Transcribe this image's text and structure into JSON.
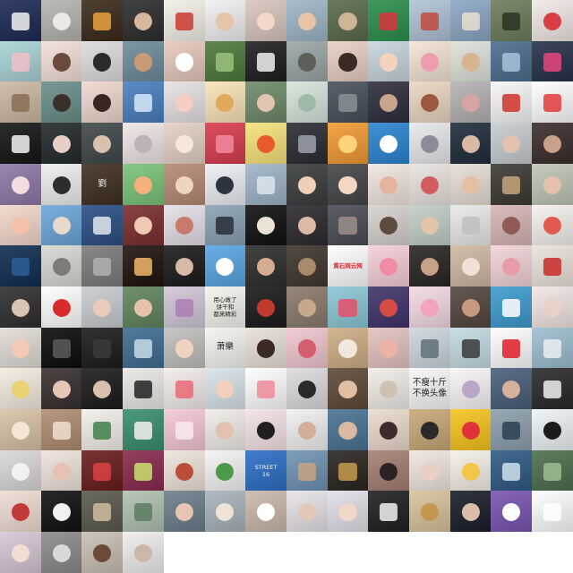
{
  "tiles": [
    {
      "bg": "#1d2a55",
      "accent": "#f3f3f3",
      "face": false
    },
    {
      "bg": "#b7b5b0",
      "accent": "#ece7e2",
      "face": true
    },
    {
      "bg": "#3a2a1a",
      "accent": "#e9a340",
      "face": false
    },
    {
      "bg": "#2d2d2d",
      "accent": "#d9b79c",
      "face": true
    },
    {
      "bg": "#f4efe8",
      "accent": "#cc3b32",
      "face": false
    },
    {
      "bg": "#f1f1f1",
      "accent": "#e6c4a6",
      "face": true
    },
    {
      "bg": "#d8c6bd",
      "accent": "#f3d7c8",
      "face": true
    },
    {
      "bg": "#9fb6c8",
      "accent": "#e8c3a7",
      "face": true
    },
    {
      "bg": "#5a6b4c",
      "accent": "#cfb598",
      "face": true
    },
    {
      "bg": "#2b8f4e",
      "accent": "#d8343a",
      "face": false
    },
    {
      "bg": "#b0c3d6",
      "accent": "#c24a3f",
      "face": false
    },
    {
      "bg": "#8ca7c4",
      "accent": "#e9e0d4",
      "face": false
    },
    {
      "bg": "#6c7d5c",
      "accent": "#2c3324",
      "face": false
    },
    {
      "bg": "#f2e9e6",
      "accent": "#d73f44",
      "face": true
    },
    {
      "bg": "#a9d4d6",
      "accent": "#f2c0c8",
      "face": false
    },
    {
      "bg": "#f3e1d9",
      "accent": "#6a4a3b",
      "face": true
    },
    {
      "bg": "#dedede",
      "accent": "#2b2b2b",
      "face": true
    },
    {
      "bg": "#6f8c9c",
      "accent": "#c99a76",
      "face": true
    },
    {
      "bg": "#e7c9bd",
      "accent": "#ffffff",
      "face": true
    },
    {
      "bg": "#4e7a3b",
      "accent": "#9cc27c",
      "face": false
    },
    {
      "bg": "#1f1f1f",
      "accent": "#f0f0f0",
      "face": false
    },
    {
      "bg": "#9aa6a6",
      "accent": "#5c6058",
      "face": true
    },
    {
      "bg": "#ead0c4",
      "accent": "#3a2a24",
      "face": true
    },
    {
      "bg": "#c8d6de",
      "accent": "#f4d2be",
      "face": true
    },
    {
      "bg": "#f4e5d6",
      "accent": "#ee9db0",
      "face": true
    },
    {
      "bg": "#dfe4da",
      "accent": "#d5b48f",
      "face": true
    },
    {
      "bg": "#4b6e8f",
      "accent": "#a7c3d9",
      "face": false
    },
    {
      "bg": "#26324a",
      "accent": "#e6467b",
      "face": false
    },
    {
      "bg": "#ccb9a3",
      "accent": "#8b6f57",
      "face": false
    },
    {
      "bg": "#6b8e8a",
      "accent": "#3a2f2b",
      "face": true
    },
    {
      "bg": "#f1d8cf",
      "accent": "#3a2621",
      "face": true
    },
    {
      "bg": "#4a7fc0",
      "accent": "#d6e8f6",
      "face": false
    },
    {
      "bg": "#e8e2e3",
      "accent": "#f5cdc2",
      "face": true
    },
    {
      "bg": "#fbe4b8",
      "accent": "#e0a85c",
      "face": true
    },
    {
      "bg": "#6f8a6b",
      "accent": "#e0c5b0",
      "face": true
    },
    {
      "bg": "#d6e6dd",
      "accent": "#9fb9a9",
      "face": true
    },
    {
      "bg": "#47505b",
      "accent": "#8a8f96",
      "face": false
    },
    {
      "bg": "#2e2d3e",
      "accent": "#c8a58d",
      "face": true
    },
    {
      "bg": "#ead7c2",
      "accent": "#9b5a3f",
      "face": true
    },
    {
      "bg": "#b7b2b4",
      "accent": "#d7a4a5",
      "face": true
    },
    {
      "bg": "#f7f7f7",
      "accent": "#d1332c",
      "face": false
    },
    {
      "bg": "#ffffff",
      "accent": "#e53b3b",
      "face": false
    },
    {
      "bg": "#151515",
      "accent": "#f3f3f3",
      "face": false
    },
    {
      "bg": "#222a2e",
      "accent": "#e7cfc7",
      "face": true
    },
    {
      "bg": "#40484a",
      "accent": "#d9c1ae",
      "face": true
    },
    {
      "bg": "#f0e6e6",
      "accent": "#bfb2b5",
      "face": true
    },
    {
      "bg": "#e4d1c5",
      "accent": "#f7e6dc",
      "face": true
    },
    {
      "bg": "#d93c4f",
      "accent": "#f28aa0",
      "face": false
    },
    {
      "bg": "#f7e37a",
      "accent": "#ea5a2f",
      "face": true
    },
    {
      "bg": "#2a2c33",
      "accent": "#9aa0ab",
      "face": false
    },
    {
      "bg": "#f29b33",
      "accent": "#ffd37c",
      "face": true
    },
    {
      "bg": "#2b85d1",
      "accent": "#ffffff",
      "face": true
    },
    {
      "bg": "#e9e8ed",
      "accent": "#8c8c98",
      "face": true
    },
    {
      "bg": "#1f2d3b",
      "accent": "#d8b9a5",
      "face": true
    },
    {
      "bg": "#c7cdd2",
      "accent": "#e2c2ae",
      "face": true
    },
    {
      "bg": "#3b2e2b",
      "accent": "#c9a18b",
      "face": true
    },
    {
      "bg": "#8f79a8",
      "accent": "#f2dde0",
      "face": true
    },
    {
      "bg": "#efefef",
      "accent": "#2d2d2d",
      "face": true
    },
    {
      "bg": "#3f2f22",
      "accent": "#d9a441",
      "face": false,
      "text": "劉",
      "style": "big light"
    },
    {
      "bg": "#7ac37b",
      "accent": "#f6b17a",
      "face": true
    },
    {
      "bg": "#b58a74",
      "accent": "#efd4c2",
      "face": true
    },
    {
      "bg": "#edf0f4",
      "accent": "#2c3440",
      "face": true
    },
    {
      "bg": "#9fb5c8",
      "accent": "#dbe6ef",
      "face": false
    },
    {
      "bg": "#3b3d3c",
      "accent": "#efcfb8",
      "face": true
    },
    {
      "bg": "#454647",
      "accent": "#f2d7c3",
      "face": true
    },
    {
      "bg": "#f2e7e0",
      "accent": "#e6b49e",
      "face": true
    },
    {
      "bg": "#eae4de",
      "accent": "#d25c5f",
      "face": true
    },
    {
      "bg": "#e7dfd6",
      "accent": "#e6bfa3",
      "face": true
    },
    {
      "bg": "#3d3a33",
      "accent": "#c5a67c",
      "face": false
    },
    {
      "bg": "#bfc7b5",
      "accent": "#e4c2ae",
      "face": true
    },
    {
      "bg": "#f3d8cc",
      "accent": "#f4c1ab",
      "face": true
    },
    {
      "bg": "#6da7d9",
      "accent": "#e8d9cc",
      "face": true
    },
    {
      "bg": "#2c4f85",
      "accent": "#e1e7ee",
      "face": false
    },
    {
      "bg": "#7a2f2f",
      "accent": "#efc9b4",
      "face": true
    },
    {
      "bg": "#e6dfe9",
      "accent": "#c97a6c",
      "face": true
    },
    {
      "bg": "#8aa2b4",
      "accent": "#2b2f38",
      "face": false
    },
    {
      "bg": "#101010",
      "accent": "#ebe2d6",
      "face": true
    },
    {
      "bg": "#2c2a2f",
      "accent": "#dcb8a6",
      "face": true
    },
    {
      "bg": "#4b4c55",
      "accent": "#9a8f88",
      "face": false
    },
    {
      "bg": "#d6d2cc",
      "accent": "#5c4c40",
      "face": true
    },
    {
      "bg": "#c2cfc7",
      "accent": "#e2c3ad",
      "face": true
    },
    {
      "bg": "#eaeae9",
      "accent": "#c0c0c0",
      "face": false
    },
    {
      "bg": "#d7b6b5",
      "accent": "#8e5c55",
      "face": true
    },
    {
      "bg": "#f5f2ef",
      "accent": "#e15b4f",
      "face": true
    },
    {
      "bg": "#0f2d52",
      "accent": "#2d5e96",
      "face": false
    },
    {
      "bg": "#d9d9d4",
      "accent": "#7f7b76",
      "face": true
    },
    {
      "bg": "#7c7c7c",
      "accent": "#b0b0b0",
      "face": false
    },
    {
      "bg": "#20130e",
      "accent": "#f1b66a",
      "face": false
    },
    {
      "bg": "#1b1b1b",
      "accent": "#d6b9a6",
      "face": true
    },
    {
      "bg": "#58a6e3",
      "accent": "#ffffff",
      "face": true
    },
    {
      "bg": "#2e2e2e",
      "accent": "#d3ac92",
      "face": true
    },
    {
      "bg": "#41362f",
      "accent": "#a88a6b",
      "face": true
    },
    {
      "bg": "#ffffff",
      "accent": "#e1261c",
      "face": false,
      "text": "黄石网云网",
      "style": "red"
    },
    {
      "bg": "#f6cfd8",
      "accent": "#f28ca5",
      "face": true
    },
    {
      "bg": "#2a2622",
      "accent": "#c6a185",
      "face": true
    },
    {
      "bg": "#d0b9a4",
      "accent": "#efe1d6",
      "face": true
    },
    {
      "bg": "#f3d4d8",
      "accent": "#e79ca8",
      "face": true
    },
    {
      "bg": "#ece4dc",
      "accent": "#c92b27",
      "face": false
    },
    {
      "bg": "#2f2f2f",
      "accent": "#d9c4b4",
      "face": true
    },
    {
      "bg": "#ffffff",
      "accent": "#d92b2b",
      "face": true
    },
    {
      "bg": "#c9ccd1",
      "accent": "#e8cbbb",
      "face": true
    },
    {
      "bg": "#61855d",
      "accent": "#e6c2a8",
      "face": true
    },
    {
      "bg": "#d2c7d9",
      "accent": "#ab7fb5",
      "face": false
    },
    {
      "bg": "#f6f4ef",
      "accent": "#222222",
      "face": false,
      "text": "用心做了\n饼干和\n都来精彩",
      "style": "dark"
    },
    {
      "bg": "#1a1a1a",
      "accent": "#c23a2d",
      "face": true
    },
    {
      "bg": "#8a7b6c",
      "accent": "#c8a88b",
      "face": true
    },
    {
      "bg": "#8bc7d6",
      "accent": "#e54f68",
      "face": false
    },
    {
      "bg": "#40336a",
      "accent": "#d34c46",
      "face": true
    },
    {
      "bg": "#f3dbe6",
      "accent": "#f3a3c0",
      "face": true
    },
    {
      "bg": "#54473f",
      "accent": "#c79a7f",
      "face": true
    },
    {
      "bg": "#3e9ccf",
      "accent": "#ffffff",
      "face": false
    },
    {
      "bg": "#f2e7e3",
      "accent": "#e9d1c6",
      "face": true
    },
    {
      "bg": "#e3dcd6",
      "accent": "#f3c9b5",
      "face": true
    },
    {
      "bg": "#0c0c0c",
      "accent": "#5c5c5c",
      "face": false
    },
    {
      "bg": "#1c1c1c",
      "accent": "#3b3b3b",
      "face": false
    },
    {
      "bg": "#3f6d93",
      "accent": "#c7dae8",
      "face": false
    },
    {
      "bg": "#c1c0bd",
      "accent": "#efd2bf",
      "face": true
    },
    {
      "bg": "#f5f4f1",
      "accent": "#777777",
      "face": false,
      "text": "萧樂",
      "style": "big dark"
    },
    {
      "bg": "#e8e1d8",
      "accent": "#3a2c24",
      "face": true
    },
    {
      "bg": "#f0c7ce",
      "accent": "#d55e6e",
      "face": true
    },
    {
      "bg": "#cfae86",
      "accent": "#f1e7dc",
      "face": true
    },
    {
      "bg": "#e4c3c0",
      "accent": "#e9b4a3",
      "face": true
    },
    {
      "bg": "#ccd7de",
      "accent": "#5f707a",
      "face": false
    },
    {
      "bg": "#c6dbe3",
      "accent": "#3a3a3a",
      "face": false
    },
    {
      "bg": "#ffffff",
      "accent": "#e01d2a",
      "face": false
    },
    {
      "bg": "#9dbfd0",
      "accent": "#e8eef2",
      "face": false
    },
    {
      "bg": "#f4ecdf",
      "accent": "#e8d272",
      "face": true
    },
    {
      "bg": "#3a3030",
      "accent": "#e6c7b6",
      "face": true
    },
    {
      "bg": "#1b1b1b",
      "accent": "#d8bfae",
      "face": true
    },
    {
      "bg": "#ebe9e5",
      "accent": "#222222",
      "face": false
    },
    {
      "bg": "#f3ecea",
      "accent": "#ea6a76",
      "face": false
    },
    {
      "bg": "#d8e4ea",
      "accent": "#f2d0bb",
      "face": true
    },
    {
      "bg": "#ffffff",
      "accent": "#f08a9a",
      "face": false
    },
    {
      "bg": "#dcdcdc",
      "accent": "#2a2a2a",
      "face": true
    },
    {
      "bg": "#5f4a3a",
      "accent": "#e0bfa4",
      "face": true
    },
    {
      "bg": "#f2ede8",
      "accent": "#cfc2b4",
      "face": true
    },
    {
      "bg": "#f8f8f8",
      "accent": "#222222",
      "face": false,
      "text": "不瘦十斤\n不换头像",
      "style": "big dark"
    },
    {
      "bg": "#fbf6f7",
      "accent": "#b9a7c7",
      "face": true
    },
    {
      "bg": "#4a5f79",
      "accent": "#d6b29b",
      "face": true
    },
    {
      "bg": "#2a2a2a",
      "accent": "#efefef",
      "face": false
    },
    {
      "bg": "#d8c3a8",
      "accent": "#f4e6d4",
      "face": true
    },
    {
      "bg": "#b18d72",
      "accent": "#f2e1cf",
      "face": false
    },
    {
      "bg": "#f3f0ea",
      "accent": "#3f7f4a",
      "face": false
    },
    {
      "bg": "#3a8f6b",
      "accent": "#f1f1f1",
      "face": false
    },
    {
      "bg": "#f6c7d4",
      "accent": "#f8eaee",
      "face": false
    },
    {
      "bg": "#f1ece7",
      "accent": "#e2c1b0",
      "face": true
    },
    {
      "bg": "#f6e3e6",
      "accent": "#1f1f1f",
      "face": true
    },
    {
      "bg": "#f1f1f1",
      "accent": "#d2ad98",
      "face": true
    },
    {
      "bg": "#4a7394",
      "accent": "#d8b8a3",
      "face": true
    },
    {
      "bg": "#ecdbce",
      "accent": "#3d2d2a",
      "face": true
    },
    {
      "bg": "#c9a877",
      "accent": "#2a2a2a",
      "face": true
    },
    {
      "bg": "#f7c51d",
      "accent": "#e0323a",
      "face": true
    },
    {
      "bg": "#8da0ad",
      "accent": "#2b3f54",
      "face": false
    },
    {
      "bg": "#eef4f7",
      "accent": "#1b1b1b",
      "face": true
    },
    {
      "bg": "#d9d9d9",
      "accent": "#f2f2f2",
      "face": true
    },
    {
      "bg": "#f1e4dd",
      "accent": "#e6c2b3",
      "face": true
    },
    {
      "bg": "#6b1d1d",
      "accent": "#d94343",
      "face": false
    },
    {
      "bg": "#8a2a4e",
      "accent": "#c9e06f",
      "face": false
    },
    {
      "bg": "#efe5da",
      "accent": "#bd4d3b",
      "face": true
    },
    {
      "bg": "#f5f5f3",
      "accent": "#4a9a4a",
      "face": true
    },
    {
      "bg": "#2d6fc7",
      "accent": "#ffffff",
      "face": false,
      "text": "STREET\n16",
      "style": "light"
    },
    {
      "bg": "#6f93b2",
      "accent": "#c7a37f",
      "face": false
    },
    {
      "bg": "#2a2520",
      "accent": "#c79b4f",
      "face": false
    },
    {
      "bg": "#a67f74",
      "accent": "#2b2322",
      "face": true
    },
    {
      "bg": "#f1e6e1",
      "accent": "#e8d0c4",
      "face": true
    },
    {
      "bg": "#f6f1e8",
      "accent": "#f3c64b",
      "face": true
    },
    {
      "bg": "#2f5b84",
      "accent": "#cfe1ee",
      "face": false
    },
    {
      "bg": "#4e6f4e",
      "accent": "#9fbd93",
      "face": false
    },
    {
      "bg": "#f0ddd3",
      "accent": "#c13b3b",
      "face": true
    },
    {
      "bg": "#111111",
      "accent": "#f1f1f1",
      "face": true
    },
    {
      "bg": "#5b5a4c",
      "accent": "#cfbd9f",
      "face": false
    },
    {
      "bg": "#b0c2b1",
      "accent": "#5f7b61",
      "face": false
    },
    {
      "bg": "#6c7f8c",
      "accent": "#e4c6b3",
      "face": true
    },
    {
      "bg": "#a9b3bc",
      "accent": "#efe3d8",
      "face": true
    },
    {
      "bg": "#cbb9ad",
      "accent": "#ffffff",
      "face": true
    },
    {
      "bg": "#e6e4e8",
      "accent": "#e2c8b6",
      "face": true
    },
    {
      "bg": "#e3e0e9",
      "accent": "#f0d7c7",
      "face": true
    },
    {
      "bg": "#202022",
      "accent": "#f1f1f1",
      "face": false
    },
    {
      "bg": "#d9c39c",
      "accent": "#c4974e",
      "face": true
    },
    {
      "bg": "#1a1e2a",
      "accent": "#d9bcaa",
      "face": true
    },
    {
      "bg": "#7a55b0",
      "accent": "#ffffff",
      "face": true
    },
    {
      "bg": "#ffffff",
      "accent": "#ffffff",
      "face": false
    },
    {
      "bg": "#d7c7d6",
      "accent": "#f1ddd1",
      "face": true
    },
    {
      "bg": "#8b8b8b",
      "accent": "#d8d8d8",
      "face": true
    },
    {
      "bg": "#c9c0b3",
      "accent": "#6b4a3a",
      "face": true
    },
    {
      "bg": "#f1efed",
      "accent": "#c8b8aa",
      "face": true
    },
    {
      "bg": "#ffffff",
      "accent": "#ffffff",
      "face": false
    },
    {
      "bg": "#ffffff",
      "accent": "#ffffff",
      "face": false
    },
    {
      "bg": "#ffffff",
      "accent": "#ffffff",
      "face": false
    },
    {
      "bg": "#ffffff",
      "accent": "#ffffff",
      "face": false
    },
    {
      "bg": "#ffffff",
      "accent": "#ffffff",
      "face": false
    },
    {
      "bg": "#ffffff",
      "accent": "#ffffff",
      "face": false
    },
    {
      "bg": "#ffffff",
      "accent": "#ffffff",
      "face": false
    },
    {
      "bg": "#ffffff",
      "accent": "#ffffff",
      "face": false
    },
    {
      "bg": "#ffffff",
      "accent": "#ffffff",
      "face": false
    },
    {
      "bg": "#ffffff",
      "accent": "#ffffff",
      "face": false
    }
  ]
}
